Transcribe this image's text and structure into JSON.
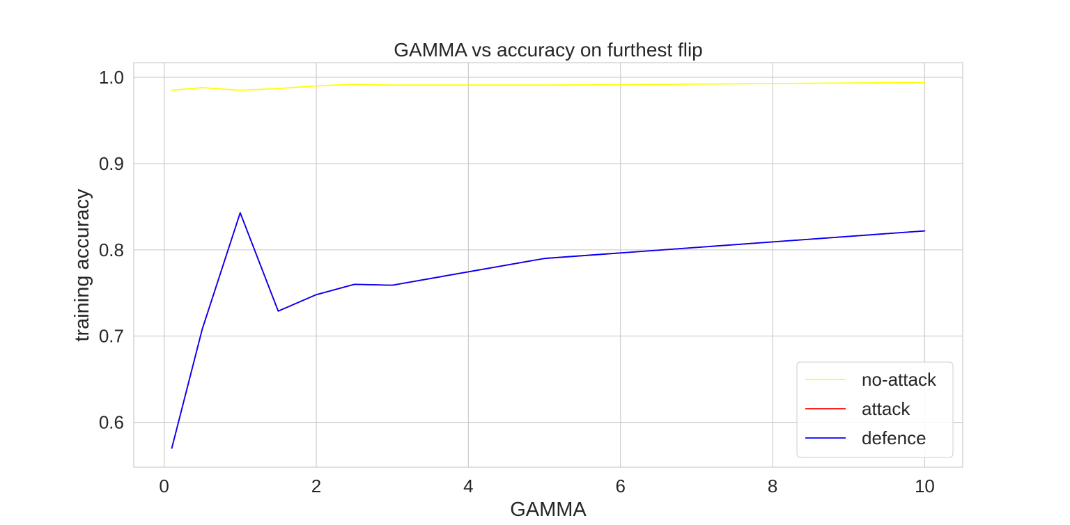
{
  "chart_data": {
    "type": "line",
    "title": "GAMMA vs accuracy on furthest flip",
    "xlabel": "GAMMA",
    "ylabel": "training accuracy",
    "xlim": [
      -0.4,
      10.5
    ],
    "ylim": [
      0.548,
      1.017
    ],
    "xticks": [
      0,
      2,
      4,
      6,
      8,
      10
    ],
    "xtick_labels": [
      "0",
      "2",
      "4",
      "6",
      "8",
      "10"
    ],
    "yticks": [
      0.6,
      0.7,
      0.8,
      0.9,
      1.0
    ],
    "ytick_labels": [
      "0.6",
      "0.7",
      "0.8",
      "0.9",
      "1.0"
    ],
    "grid": true,
    "legend_position": "lower-right",
    "x": [
      0.1,
      0.5,
      1.0,
      1.5,
      2.0,
      2.5,
      3.0,
      5.0,
      10.0
    ],
    "series": [
      {
        "name": "no-attack",
        "color": "#ffff00",
        "values": [
          0.985,
          0.988,
          0.985,
          0.987,
          0.99,
          0.992,
          0.991,
          0.991,
          0.994
        ]
      },
      {
        "name": "attack",
        "color": "#ff0000",
        "values": [
          0.57,
          0.708,
          0.843,
          0.729,
          0.748,
          0.76,
          0.759,
          0.79,
          0.822
        ]
      },
      {
        "name": "defence",
        "color": "#0000ff",
        "values": [
          0.57,
          0.708,
          0.843,
          0.729,
          0.748,
          0.76,
          0.759,
          0.79,
          0.822
        ]
      }
    ]
  }
}
